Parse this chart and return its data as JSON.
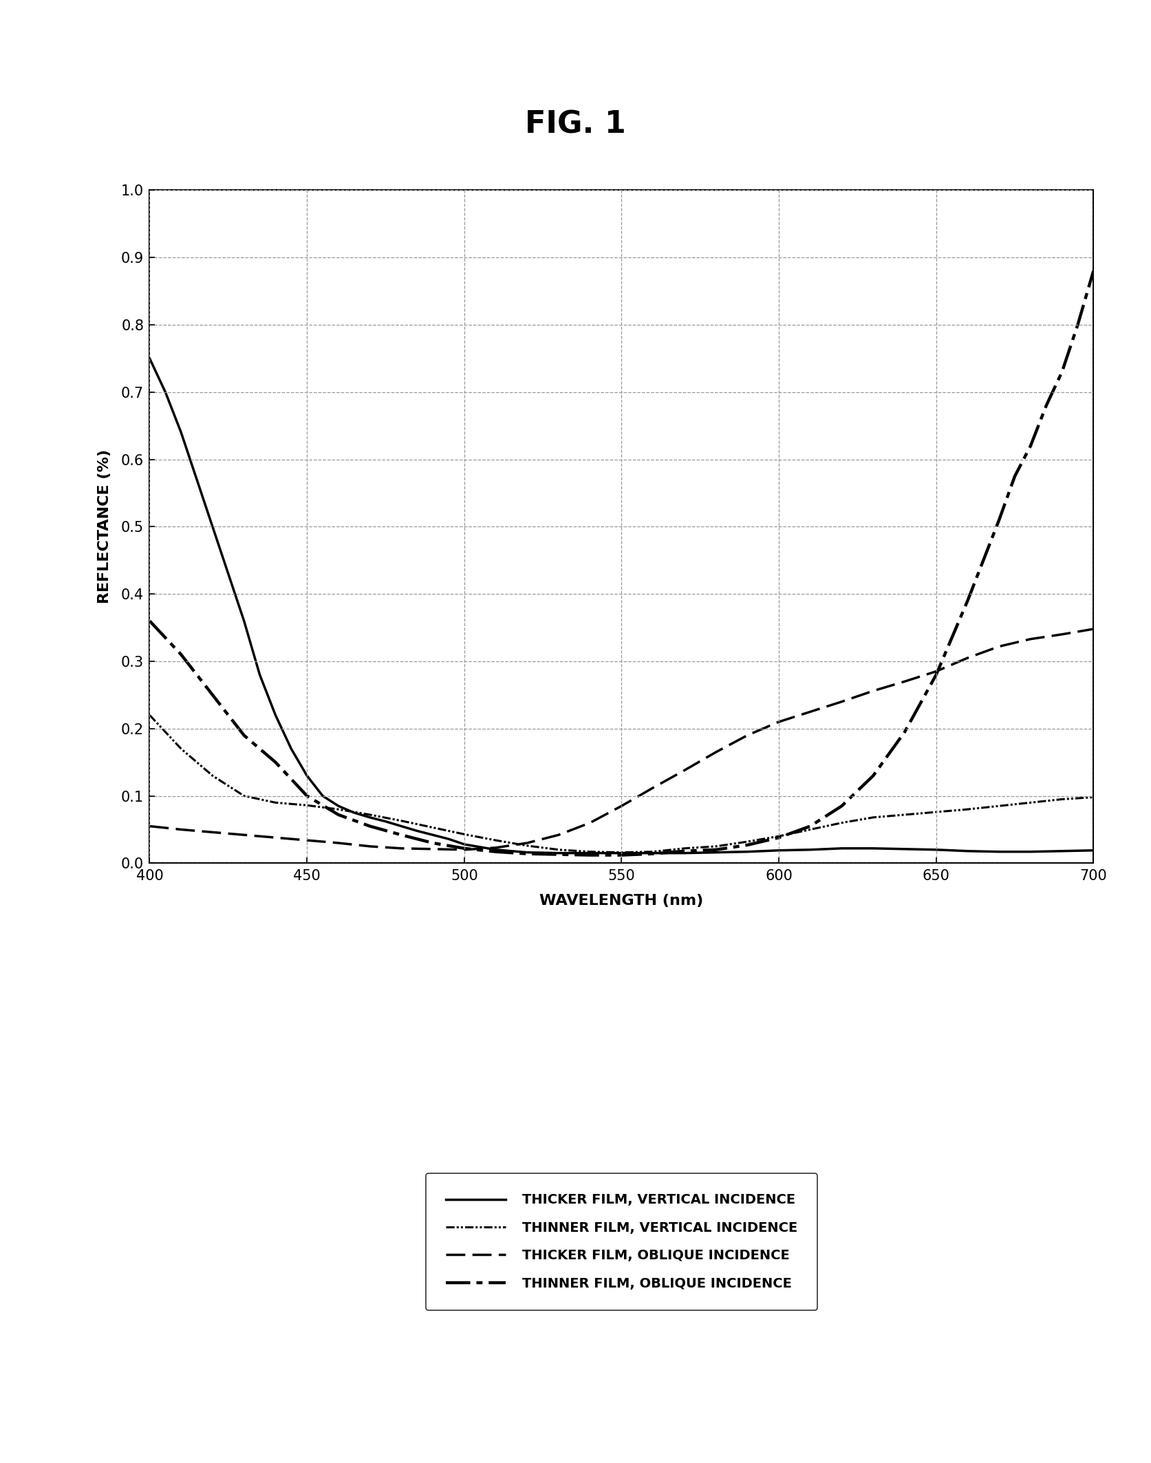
{
  "title": "FIG. 1",
  "xlabel": "WAVELENGTH (nm)",
  "ylabel": "REFLECTANCE (%)",
  "xlim": [
    400,
    700
  ],
  "ylim": [
    0.0,
    1.0
  ],
  "xticks": [
    400,
    450,
    500,
    550,
    600,
    650,
    700
  ],
  "yticks": [
    0.0,
    0.1,
    0.2,
    0.3,
    0.4,
    0.5,
    0.6,
    0.7,
    0.8,
    0.9,
    1.0
  ],
  "background_color": "#ffffff",
  "thicker_vertical_x": [
    400,
    405,
    410,
    415,
    420,
    425,
    430,
    435,
    440,
    445,
    450,
    455,
    460,
    465,
    470,
    475,
    480,
    485,
    490,
    495,
    500,
    510,
    520,
    530,
    540,
    550,
    560,
    570,
    580,
    590,
    600,
    610,
    620,
    630,
    640,
    650,
    660,
    670,
    680,
    690,
    700
  ],
  "thicker_vertical_y": [
    0.75,
    0.7,
    0.64,
    0.57,
    0.5,
    0.43,
    0.36,
    0.28,
    0.22,
    0.17,
    0.13,
    0.1,
    0.085,
    0.075,
    0.068,
    0.062,
    0.055,
    0.048,
    0.042,
    0.036,
    0.028,
    0.02,
    0.016,
    0.015,
    0.015,
    0.015,
    0.015,
    0.015,
    0.016,
    0.017,
    0.019,
    0.02,
    0.022,
    0.022,
    0.021,
    0.02,
    0.018,
    0.017,
    0.017,
    0.018,
    0.019
  ],
  "thinner_vertical_x": [
    400,
    410,
    420,
    430,
    440,
    450,
    460,
    470,
    480,
    490,
    500,
    510,
    520,
    530,
    540,
    550,
    560,
    570,
    580,
    590,
    600,
    610,
    620,
    630,
    640,
    650,
    660,
    670,
    680,
    690,
    700
  ],
  "thinner_vertical_y": [
    0.22,
    0.17,
    0.13,
    0.1,
    0.09,
    0.086,
    0.08,
    0.072,
    0.063,
    0.053,
    0.043,
    0.034,
    0.026,
    0.02,
    0.017,
    0.016,
    0.017,
    0.022,
    0.025,
    0.032,
    0.04,
    0.05,
    0.06,
    0.068,
    0.072,
    0.076,
    0.08,
    0.085,
    0.09,
    0.095,
    0.098
  ],
  "thicker_oblique_x": [
    400,
    410,
    420,
    430,
    440,
    450,
    460,
    470,
    480,
    490,
    500,
    510,
    520,
    530,
    540,
    550,
    560,
    570,
    580,
    590,
    600,
    610,
    620,
    630,
    640,
    650,
    660,
    670,
    680,
    690,
    700
  ],
  "thicker_oblique_y": [
    0.055,
    0.05,
    0.046,
    0.042,
    0.038,
    0.034,
    0.03,
    0.025,
    0.022,
    0.021,
    0.02,
    0.023,
    0.03,
    0.042,
    0.06,
    0.085,
    0.112,
    0.138,
    0.165,
    0.19,
    0.21,
    0.225,
    0.24,
    0.256,
    0.27,
    0.285,
    0.305,
    0.322,
    0.333,
    0.34,
    0.348
  ],
  "thinner_oblique_x": [
    400,
    410,
    420,
    430,
    440,
    450,
    460,
    470,
    480,
    490,
    500,
    510,
    520,
    530,
    540,
    550,
    560,
    570,
    580,
    590,
    600,
    610,
    620,
    630,
    640,
    650,
    660,
    665,
    670,
    675,
    680,
    685,
    690,
    695,
    700
  ],
  "thinner_oblique_y": [
    0.36,
    0.31,
    0.25,
    0.19,
    0.15,
    0.1,
    0.072,
    0.055,
    0.042,
    0.03,
    0.022,
    0.017,
    0.014,
    0.013,
    0.012,
    0.012,
    0.014,
    0.018,
    0.02,
    0.027,
    0.038,
    0.055,
    0.085,
    0.13,
    0.195,
    0.28,
    0.39,
    0.45,
    0.51,
    0.575,
    0.62,
    0.68,
    0.73,
    0.8,
    0.88
  ],
  "legend_labels": [
    "THICKER FILM, VERTICAL INCIDENCE",
    "THINNER FILM, VERTICAL INCIDENCE",
    "THICKER FILM, OBLIQUE INCIDENCE",
    "THINNER FILM, OBLIQUE INCIDENCE"
  ],
  "title_fontsize": 32,
  "label_fontsize": 16,
  "tick_fontsize": 15,
  "legend_fontsize": 14
}
